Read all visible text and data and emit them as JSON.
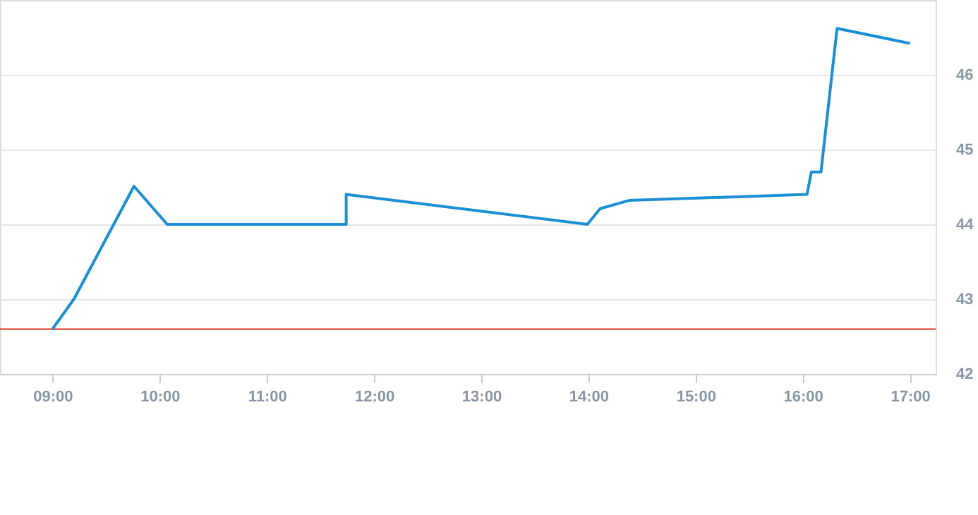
{
  "chart_data": {
    "type": "line",
    "x": [
      9.0,
      9.2,
      9.76,
      10.07,
      11.74,
      11.74,
      13.99,
      14.11,
      14.38,
      16.04,
      16.08,
      16.17,
      16.32,
      17.0
    ],
    "series": [
      {
        "color": "#1a8fd6",
        "values": [
          42.6,
          43.0,
          44.51,
          44.0,
          44.0,
          44.4,
          44.0,
          44.21,
          44.32,
          44.4,
          44.7,
          44.7,
          46.62,
          46.42
        ]
      }
    ],
    "xlim": [
      8.51,
      17.24
    ],
    "xticks": [
      {
        "value": 9,
        "label": "09:00"
      },
      {
        "value": 10,
        "label": "10:00"
      },
      {
        "value": 11,
        "label": "11:00"
      },
      {
        "value": 12,
        "label": "12:00"
      },
      {
        "value": 13,
        "label": "13:00"
      },
      {
        "value": 14,
        "label": "14:00"
      },
      {
        "value": 15,
        "label": "15:00"
      },
      {
        "value": 16,
        "label": "16:00"
      },
      {
        "value": 17,
        "label": "17:00"
      }
    ],
    "ylim": [
      42,
      47
    ],
    "yticks": [
      42,
      43,
      44,
      45,
      46
    ],
    "ref_lines": [
      {
        "axis": "y",
        "value": 42.6,
        "label": null,
        "color": "#e0301e"
      }
    ],
    "grid": "y",
    "marker": "none",
    "line_style": "solid"
  }
}
